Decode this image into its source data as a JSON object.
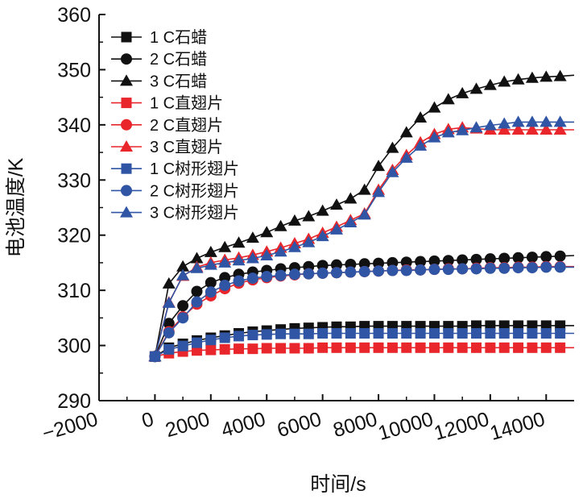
{
  "chart_data": {
    "type": "line",
    "title": "",
    "xlabel": "时间/s",
    "ylabel": "电池温度/K",
    "xlim": [
      -2000,
      15000
    ],
    "ylim": [
      290,
      360
    ],
    "xticks": [
      -2000,
      0,
      2000,
      4000,
      6000,
      8000,
      10000,
      12000,
      14000
    ],
    "xtick_labels": [
      "−2000",
      "0",
      "2000",
      "4000",
      "6000",
      "8000",
      "10000",
      "12000",
      "14000"
    ],
    "yticks": [
      290,
      300,
      310,
      320,
      330,
      340,
      350,
      360
    ],
    "ytick_labels": [
      "290",
      "300",
      "310",
      "320",
      "330",
      "340",
      "350",
      "360"
    ],
    "grid": false,
    "legend_position": "top-left",
    "x": [
      0,
      500,
      1000,
      1500,
      2000,
      2500,
      3000,
      3500,
      4000,
      4500,
      5000,
      5500,
      6000,
      6500,
      7000,
      7500,
      8000,
      8500,
      9000,
      9500,
      10000,
      10500,
      11000,
      11500,
      12000,
      12500,
      13000,
      13500,
      14000,
      14500
    ],
    "series": [
      {
        "name": "1 C石蜡",
        "color": "#111111",
        "marker": "square",
        "values": [
          298,
          299.6,
          300.3,
          300.9,
          301.4,
          301.8,
          302.2,
          302.5,
          302.7,
          302.9,
          303.1,
          303.2,
          303.3,
          303.4,
          303.4,
          303.5,
          303.5,
          303.5,
          303.5,
          303.5,
          303.5,
          303.5,
          303.5,
          303.6,
          303.6,
          303.6,
          303.6,
          303.6,
          303.6,
          303.6
        ],
        "end_value": 303.6
      },
      {
        "name": "2 C石蜡",
        "color": "#111111",
        "marker": "circle",
        "values": [
          298,
          304,
          307.2,
          309.8,
          311.4,
          312.3,
          312.9,
          313.3,
          313.6,
          313.9,
          314.1,
          314.3,
          314.5,
          314.6,
          314.7,
          314.8,
          314.9,
          315.0,
          315.1,
          315.2,
          315.3,
          315.4,
          315.5,
          315.6,
          315.7,
          315.8,
          315.9,
          316.0,
          316.1,
          316.2
        ],
        "end_value": 316.3
      },
      {
        "name": "3 C石蜡",
        "color": "#111111",
        "marker": "triangle",
        "values": [
          298,
          311.2,
          314.3,
          315.8,
          316.9,
          317.8,
          318.6,
          319.5,
          320.5,
          321.6,
          322.6,
          323.4,
          324.4,
          325.5,
          326.6,
          328.2,
          332.5,
          335.8,
          338.6,
          341.3,
          343.1,
          344.6,
          345.7,
          346.5,
          347.2,
          347.8,
          348.2,
          348.5,
          348.7,
          348.8
        ],
        "end_value": 349.0
      },
      {
        "name": "1 C直翅片",
        "color": "#e8262b",
        "marker": "square",
        "values": [
          298,
          298.6,
          298.9,
          299.1,
          299.2,
          299.3,
          299.4,
          299.4,
          299.5,
          299.5,
          299.5,
          299.5,
          299.6,
          299.6,
          299.6,
          299.6,
          299.6,
          299.6,
          299.6,
          299.6,
          299.6,
          299.6,
          299.6,
          299.6,
          299.6,
          299.6,
          299.6,
          299.6,
          299.6,
          299.6
        ],
        "end_value": 299.6
      },
      {
        "name": "2 C直翅片",
        "color": "#e8262b",
        "marker": "circle",
        "values": [
          298,
          302.5,
          305.2,
          307.5,
          309,
          310.3,
          311.3,
          311.9,
          312.3,
          312.6,
          312.8,
          313.0,
          313.1,
          313.2,
          313.3,
          313.4,
          313.5,
          313.6,
          313.7,
          313.7,
          313.8,
          313.9,
          313.9,
          314.0,
          314.1,
          314.1,
          314.2,
          314.2,
          314.3,
          314.3
        ],
        "end_value": 314.3
      },
      {
        "name": "3 C直翅片",
        "color": "#e8262b",
        "marker": "triangle",
        "values": [
          298,
          307.8,
          312.6,
          314.2,
          315,
          315.5,
          315.9,
          316.4,
          317.0,
          317.7,
          318.5,
          319.3,
          320.4,
          321.5,
          322.7,
          323.9,
          328.2,
          331.8,
          334.5,
          336.8,
          338.3,
          339.2,
          339.5,
          339.3,
          339.1,
          339.1,
          339.1,
          339.1,
          339.1,
          339.1
        ],
        "end_value": 339.1
      },
      {
        "name": "1 C树形翅片",
        "color": "#2f55a4",
        "marker": "square",
        "values": [
          298,
          299.3,
          299.9,
          300.5,
          301.0,
          301.4,
          301.7,
          301.9,
          302.0,
          302.1,
          302.1,
          302.1,
          302.2,
          302.2,
          302.2,
          302.2,
          302.2,
          302.2,
          302.2,
          302.2,
          302.2,
          302.2,
          302.2,
          302.2,
          302.2,
          302.2,
          302.2,
          302.2,
          302.2,
          302.2
        ],
        "end_value": 302.2
      },
      {
        "name": "2 C树形翅片",
        "color": "#2f55a4",
        "marker": "circle",
        "values": [
          298,
          302.3,
          305.0,
          307.9,
          309.7,
          310.9,
          311.7,
          312.2,
          312.5,
          312.7,
          312.9,
          313.0,
          313.1,
          313.2,
          313.3,
          313.4,
          313.5,
          313.6,
          313.6,
          313.7,
          313.8,
          313.8,
          313.9,
          313.9,
          314.0,
          314.0,
          314.1,
          314.1,
          314.2,
          314.2
        ],
        "end_value": 314.2
      },
      {
        "name": "3 C树形翅片",
        "color": "#2f55a4",
        "marker": "triangle",
        "values": [
          298,
          307.7,
          312.7,
          314.0,
          314.6,
          315.0,
          315.4,
          315.8,
          316.3,
          317.0,
          317.8,
          318.7,
          319.8,
          321.0,
          322.3,
          323.7,
          327.8,
          331.4,
          334.0,
          336.2,
          337.7,
          338.6,
          339.0,
          339.5,
          339.9,
          340.2,
          340.5,
          340.5,
          340.5,
          340.5
        ],
        "end_value": 340.5
      }
    ]
  }
}
